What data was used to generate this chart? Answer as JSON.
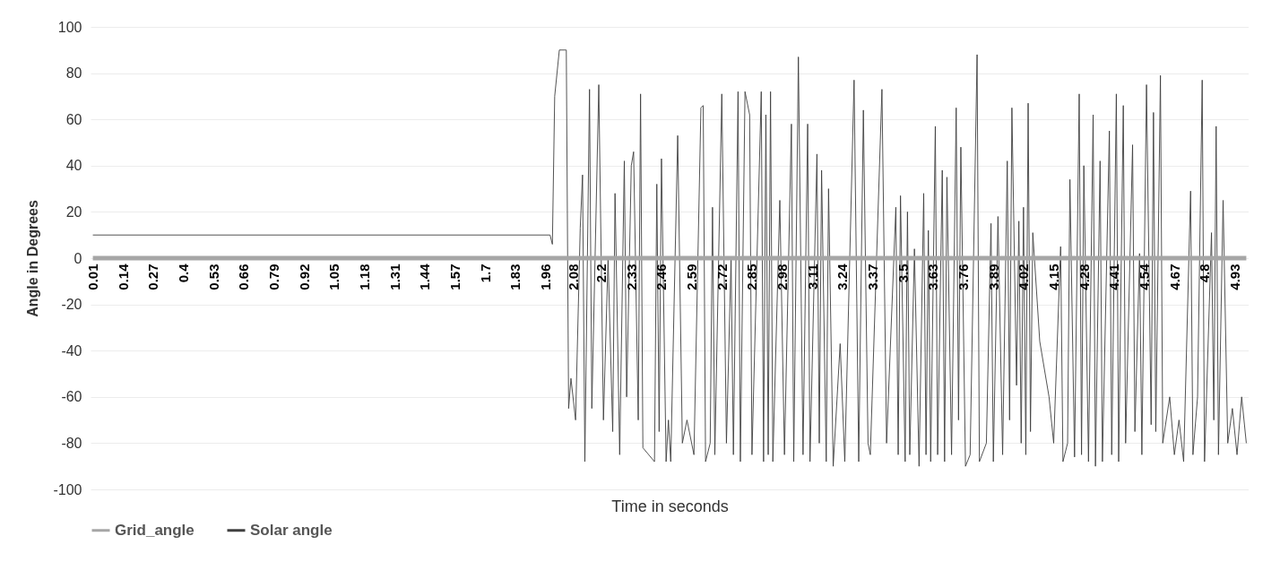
{
  "chart_data": {
    "type": "line",
    "xlabel": "Time in seconds",
    "ylabel": "Angle in Degrees",
    "xlim": [
      0,
      4.99
    ],
    "ylim": [
      -100,
      100
    ],
    "xticks": [
      0.01,
      0.14,
      0.27,
      0.4,
      0.53,
      0.66,
      0.79,
      0.92,
      1.05,
      1.18,
      1.31,
      1.44,
      1.57,
      1.7,
      1.83,
      1.96,
      2.08,
      2.2,
      2.33,
      2.46,
      2.59,
      2.72,
      2.85,
      2.98,
      3.11,
      3.24,
      3.37,
      3.5,
      3.63,
      3.76,
      3.89,
      4.02,
      4.15,
      4.28,
      4.41,
      4.54,
      4.67,
      4.8,
      4.93
    ],
    "yticks": [
      -100,
      -80,
      -60,
      -40,
      -20,
      0,
      20,
      40,
      60,
      80,
      100
    ],
    "grid": "y",
    "legend": "bottom",
    "series": [
      {
        "name": "Grid_angle",
        "color": "#a6a6a6",
        "x": [
          0.01,
          4.98
        ],
        "values": [
          0,
          0
        ]
      },
      {
        "name": "Solar angle",
        "color": "#404040",
        "x": [
          0.01,
          1.98,
          1.99,
          2.0,
          2.02,
          2.05,
          2.06,
          2.07,
          2.09,
          2.11,
          2.12,
          2.13,
          2.15,
          2.16,
          2.19,
          2.21,
          2.23,
          2.25,
          2.26,
          2.28,
          2.3,
          2.31,
          2.33,
          2.34,
          2.36,
          2.37,
          2.38,
          2.43,
          2.44,
          2.45,
          2.46,
          2.48,
          2.49,
          2.5,
          2.53,
          2.55,
          2.57,
          2.6,
          2.63,
          2.64,
          2.65,
          2.67,
          2.68,
          2.69,
          2.72,
          2.74,
          2.76,
          2.77,
          2.79,
          2.8,
          2.82,
          2.84,
          2.85,
          2.89,
          2.9,
          2.91,
          2.92,
          2.93,
          2.94,
          2.97,
          2.99,
          3.02,
          3.03,
          3.05,
          3.07,
          3.09,
          3.1,
          3.13,
          3.14,
          3.15,
          3.17,
          3.18,
          3.2,
          3.23,
          3.25,
          3.29,
          3.31,
          3.33,
          3.35,
          3.36,
          3.41,
          3.43,
          3.47,
          3.48,
          3.49,
          3.51,
          3.52,
          3.53,
          3.55,
          3.57,
          3.59,
          3.6,
          3.61,
          3.62,
          3.64,
          3.65,
          3.67,
          3.68,
          3.69,
          3.71,
          3.73,
          3.74,
          3.75,
          3.77,
          3.79,
          3.82,
          3.83,
          3.86,
          3.88,
          3.89,
          3.91,
          3.93,
          3.95,
          3.96,
          3.97,
          3.99,
          4.0,
          4.01,
          4.02,
          4.03,
          4.04,
          4.05,
          4.06,
          4.09,
          4.13,
          4.15,
          4.18,
          4.19,
          4.21,
          4.22,
          4.24,
          4.26,
          4.27,
          4.28,
          4.3,
          4.32,
          4.33,
          4.35,
          4.36,
          4.39,
          4.4,
          4.42,
          4.43,
          4.45,
          4.46,
          4.49,
          4.5,
          4.52,
          4.53,
          4.55,
          4.57,
          4.58,
          4.59,
          4.61,
          4.62,
          4.65,
          4.67,
          4.69,
          4.71,
          4.74,
          4.75,
          4.77,
          4.79,
          4.8,
          4.83,
          4.84,
          4.85,
          4.86,
          4.88,
          4.9,
          4.92,
          4.94,
          4.96,
          4.98
        ],
        "values": [
          10,
          10,
          6,
          70,
          90,
          90,
          -65,
          -52,
          -70,
          13,
          36,
          -88,
          73,
          -65,
          75,
          -70,
          0,
          -75,
          28,
          -85,
          42,
          -60,
          40,
          46,
          -70,
          71,
          -82,
          -88,
          32,
          -75,
          43,
          -88,
          -70,
          -88,
          53,
          -80,
          -70,
          -85,
          65,
          66,
          -88,
          -80,
          22,
          -85,
          71,
          -80,
          0,
          -85,
          72,
          -88,
          72,
          62,
          -85,
          72,
          -88,
          62,
          -85,
          72,
          -88,
          25,
          -85,
          58,
          -88,
          87,
          -85,
          58,
          -88,
          45,
          -80,
          38,
          -88,
          30,
          -90,
          -37,
          -88,
          77,
          -88,
          64,
          -80,
          -85,
          73,
          -80,
          22,
          -85,
          27,
          -88,
          20,
          -85,
          4,
          -90,
          28,
          -85,
          12,
          -88,
          57,
          -85,
          38,
          -88,
          35,
          -85,
          65,
          -70,
          48,
          -90,
          -85,
          88,
          -88,
          -80,
          15,
          -88,
          18,
          -85,
          42,
          -70,
          65,
          -55,
          16,
          -80,
          22,
          -85,
          67,
          -75,
          11,
          -36,
          -60,
          -80,
          5,
          -88,
          -80,
          34,
          -86,
          71,
          -85,
          40,
          -88,
          62,
          -90,
          42,
          -88,
          55,
          -85,
          71,
          -88,
          66,
          -80,
          49,
          -75,
          2,
          -85,
          75,
          -72,
          63,
          -75,
          79,
          -80,
          -60,
          -85,
          -70,
          -88,
          29,
          -85,
          -60,
          77,
          -88,
          11,
          -70,
          57,
          -85,
          25,
          -80,
          -65,
          -85,
          -60,
          -80
        ]
      }
    ]
  }
}
